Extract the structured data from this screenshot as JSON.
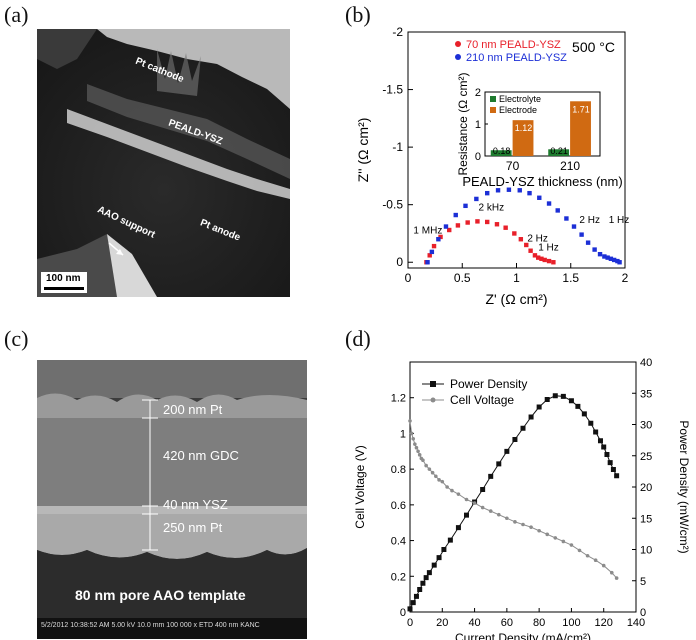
{
  "panels": {
    "a": {
      "letter": "(a)",
      "labels": {
        "cathode": "Pt cathode",
        "electrolyte": "PEALD-YSZ",
        "support": "AAO support",
        "anode": "Pt anode",
        "scale": "100 nm"
      }
    },
    "b": {
      "letter": "(b)"
    },
    "c": {
      "letter": "(c)",
      "layers": [
        "200 nm Pt",
        "420 nm GDC",
        "40 nm YSZ",
        "250 nm Pt"
      ],
      "template": "80 nm pore AAO template",
      "infobar": "5/2/2012  10:38:52 AM  5.00 kV  10.0 mm  100 000 x  ETD  400 nm  KANC"
    },
    "d": {
      "letter": "(d)"
    }
  },
  "chart_data": [
    {
      "type": "scatter",
      "panel": "b",
      "annotation": "500 °C",
      "xlabel": "Z' (Ω cm²)",
      "ylabel": "Z'' (Ω cm²)",
      "xlim": [
        0,
        2
      ],
      "ylim": [
        0.05,
        -2.0
      ],
      "y_inverted": true,
      "xticks": [
        "0",
        "0.5",
        "1",
        "1.5",
        "2"
      ],
      "yticks": [
        "-2",
        "-1.5",
        "-1",
        "-0.5",
        "0"
      ],
      "grid": false,
      "legend_position": "top",
      "series": [
        {
          "name": "70 nm PEALD-YSZ",
          "color": "#e8202a",
          "x": [
            0.17,
            0.2,
            0.24,
            0.3,
            0.38,
            0.46,
            0.55,
            0.64,
            0.73,
            0.82,
            0.9,
            0.98,
            1.04,
            1.09,
            1.13,
            1.17,
            1.2,
            1.23,
            1.26,
            1.3,
            1.34
          ],
          "y": [
            0,
            -0.06,
            -0.14,
            -0.22,
            -0.28,
            -0.32,
            -0.345,
            -0.355,
            -0.35,
            -0.33,
            -0.3,
            -0.25,
            -0.2,
            -0.15,
            -0.1,
            -0.06,
            -0.04,
            -0.03,
            -0.02,
            -0.01,
            0
          ]
        },
        {
          "name": "210 nm PEALD-YSZ",
          "color": "#1c2fd6",
          "x": [
            0.18,
            0.22,
            0.28,
            0.35,
            0.44,
            0.53,
            0.63,
            0.73,
            0.83,
            0.93,
            1.03,
            1.12,
            1.21,
            1.3,
            1.38,
            1.46,
            1.53,
            1.6,
            1.66,
            1.72,
            1.77,
            1.81,
            1.84,
            1.87,
            1.9,
            1.93,
            1.95
          ],
          "y": [
            0,
            -0.09,
            -0.2,
            -0.31,
            -0.41,
            -0.49,
            -0.55,
            -0.6,
            -0.625,
            -0.63,
            -0.625,
            -0.6,
            -0.56,
            -0.51,
            -0.45,
            -0.38,
            -0.31,
            -0.24,
            -0.17,
            -0.11,
            -0.07,
            -0.05,
            -0.04,
            -0.03,
            -0.02,
            -0.01,
            0
          ]
        }
      ],
      "freq_labels": [
        "1 MHz",
        "2 kHz",
        "2 Hz",
        "1 Hz",
        "2 Hz",
        "1 Hz"
      ],
      "inset": {
        "type": "bar",
        "categories": [
          "70",
          "210"
        ],
        "xlabel": "PEALD-YSZ thickness (nm)",
        "ylabel": "Resistance (Ω cm²)",
        "ylim": [
          0,
          2
        ],
        "yticks": [
          "0",
          "1",
          "2"
        ],
        "series": [
          {
            "name": "Electrolyte",
            "color": "#1e7a2e",
            "values": [
              0.18,
              0.21
            ]
          },
          {
            "name": "Electrode",
            "color": "#d06a12",
            "values": [
              1.12,
              1.71
            ]
          }
        ]
      }
    },
    {
      "type": "line",
      "panel": "d",
      "xlabel": "Current Density (mA/cm²)",
      "ylabel": "Cell Voltage (V)",
      "y2label": "Power Density (mW/cm²)",
      "xlim": [
        0,
        140
      ],
      "ylim": [
        0,
        1.4
      ],
      "y2lim": [
        0,
        40
      ],
      "xticks": [
        "0",
        "20",
        "40",
        "60",
        "80",
        "100",
        "120",
        "140"
      ],
      "yticks": [
        "0",
        "0.2",
        "0.4",
        "0.6",
        "0.8",
        "1",
        "1.2"
      ],
      "y2ticks": [
        "0",
        "5",
        "10",
        "15",
        "20",
        "25",
        "30",
        "35",
        "40"
      ],
      "grid": false,
      "legend_position": "top-left",
      "series": [
        {
          "name": "Power Density",
          "axis": "right",
          "marker": "square",
          "color": "#111111",
          "x": [
            0,
            2,
            4,
            6,
            8,
            10,
            12,
            15,
            18,
            21,
            25,
            30,
            35,
            40,
            45,
            50,
            55,
            60,
            65,
            70,
            75,
            80,
            85,
            90,
            95,
            100,
            104,
            108,
            112,
            115,
            118,
            120,
            122,
            124,
            126,
            128
          ],
          "y": [
            0.5,
            1.5,
            2.5,
            3.6,
            4.6,
            5.5,
            6.3,
            7.5,
            8.7,
            10,
            11.5,
            13.5,
            15.5,
            17.6,
            19.6,
            21.7,
            23.7,
            25.7,
            27.6,
            29.4,
            31.2,
            32.8,
            34,
            34.6,
            34.5,
            33.8,
            32.9,
            31.7,
            30.2,
            28.8,
            27.4,
            26.4,
            25.2,
            23.9,
            22.8,
            21.8
          ]
        },
        {
          "name": "Cell Voltage",
          "axis": "left",
          "marker": "circle",
          "color": "#8c8c8c",
          "x": [
            0,
            1,
            2,
            3,
            4,
            5,
            6,
            7,
            8,
            10,
            12,
            14,
            16,
            18,
            20,
            23,
            26,
            30,
            35,
            40,
            45,
            50,
            55,
            60,
            65,
            70,
            75,
            80,
            85,
            90,
            95,
            100,
            105,
            110,
            115,
            120,
            125,
            128
          ],
          "y": [
            1.07,
            1.0,
            0.97,
            0.94,
            0.92,
            0.9,
            0.88,
            0.86,
            0.85,
            0.82,
            0.8,
            0.78,
            0.76,
            0.74,
            0.73,
            0.7,
            0.68,
            0.66,
            0.63,
            0.61,
            0.585,
            0.565,
            0.545,
            0.525,
            0.505,
            0.49,
            0.475,
            0.455,
            0.435,
            0.415,
            0.395,
            0.375,
            0.345,
            0.315,
            0.29,
            0.26,
            0.22,
            0.19
          ]
        }
      ]
    }
  ]
}
